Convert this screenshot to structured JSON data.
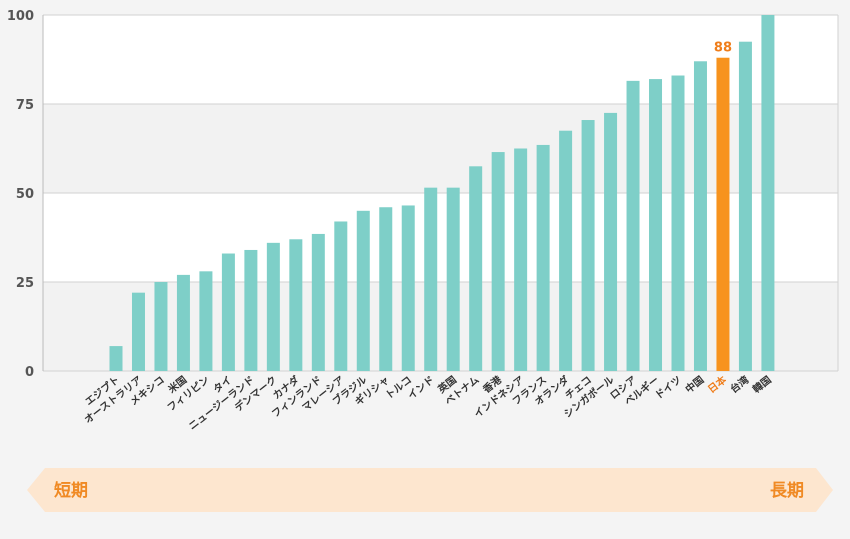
{
  "chart_data": {
    "type": "bar",
    "categories": [
      "エジプト",
      "オーストラリア",
      "メキシコ",
      "米国",
      "フィリピン",
      "タイ",
      "ニュージーランド",
      "デンマーク",
      "カナダ",
      "フィンランド",
      "マレーシア",
      "ブラジル",
      "ギリシャ",
      "トルコ",
      "インド",
      "英国",
      "ベトナム",
      "香港",
      "インドネシア",
      "フランス",
      "オランダ",
      "チェコ",
      "シンガポール",
      "ロシア",
      "ベルギー",
      "ドイツ",
      "中国",
      "日本",
      "台湾",
      "韓国"
    ],
    "values": [
      7,
      22,
      25,
      27,
      28,
      33,
      34,
      36,
      37,
      38.5,
      42,
      45,
      46,
      46.5,
      51.5,
      51.5,
      57.5,
      61.5,
      62.5,
      63.5,
      67.5,
      70.5,
      72.5,
      81.5,
      82,
      83,
      87,
      88,
      92.5,
      100
    ],
    "ylim": [
      0,
      100
    ],
    "yticks": [
      0,
      25,
      50,
      75,
      100
    ],
    "ytick_labels": [
      "0",
      "25",
      "50",
      "75",
      "100"
    ],
    "highlight": "日本",
    "data_labels": [
      {
        "category": "日本",
        "text": "88"
      }
    ],
    "grid": true,
    "colors": {
      "bar": "#7ecfc8",
      "highlight": "#f7931e",
      "highlight_text": "#ef7d1a",
      "band_light": "#ffffff",
      "band_dark": "#f2f2f2",
      "arrow": "#fde6cf"
    }
  },
  "scale_arrow": {
    "left_label": "短期",
    "right_label": "長期"
  }
}
